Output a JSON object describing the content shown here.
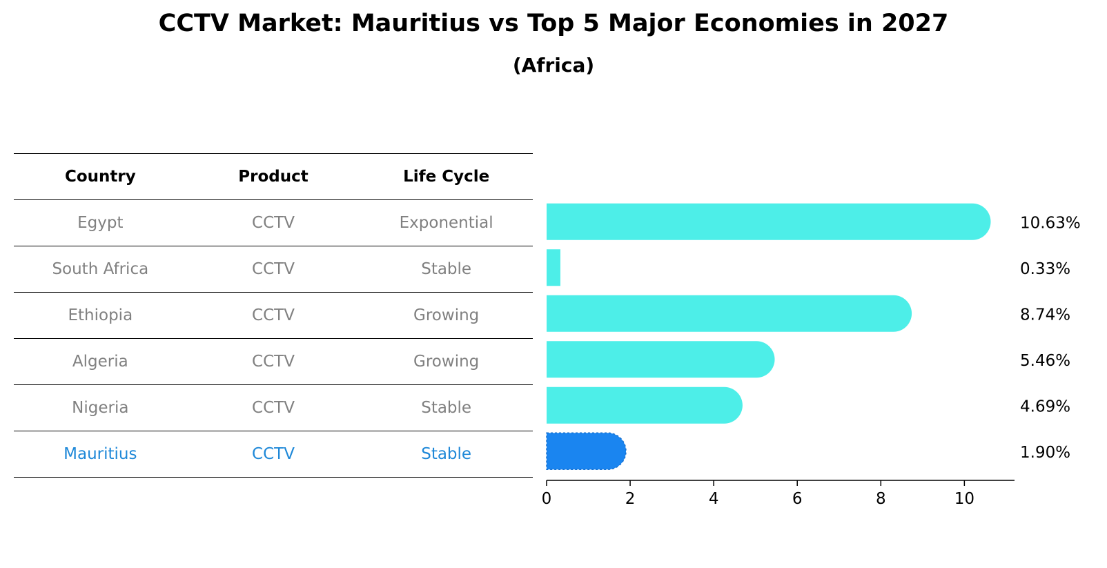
{
  "title": "CCTV Market: Mauritius vs Top 5 Major Economies in 2027",
  "subtitle": "(Africa)",
  "table": {
    "headers": [
      "Country",
      "Product",
      "Life Cycle"
    ],
    "rows": [
      {
        "country": "Egypt",
        "product": "CCTV",
        "life_cycle": "Exponential",
        "highlight": false
      },
      {
        "country": "South Africa",
        "product": "CCTV",
        "life_cycle": "Stable",
        "highlight": false
      },
      {
        "country": "Ethiopia",
        "product": "CCTV",
        "life_cycle": "Growing",
        "highlight": false
      },
      {
        "country": "Algeria",
        "product": "CCTV",
        "life_cycle": "Growing",
        "highlight": false
      },
      {
        "country": "Nigeria",
        "product": "CCTV",
        "life_cycle": "Stable",
        "highlight": false
      },
      {
        "country": "Mauritius",
        "product": "CCTV",
        "life_cycle": "Stable",
        "highlight": true
      }
    ]
  },
  "colors": {
    "bar": "#4deee8",
    "highlight_bar": "#1a85f0",
    "muted_text": "#808080",
    "highlight_text": "#1e88d8"
  },
  "chart_data": {
    "type": "bar",
    "orientation": "horizontal",
    "categories": [
      "Egypt",
      "South Africa",
      "Ethiopia",
      "Algeria",
      "Nigeria",
      "Mauritius"
    ],
    "values": [
      10.63,
      0.33,
      8.74,
      5.46,
      4.69,
      1.9
    ],
    "value_labels": [
      "10.63%",
      "0.33%",
      "8.74%",
      "5.46%",
      "4.69%",
      "1.90%"
    ],
    "highlight_index": 5,
    "xlim": [
      0,
      11.2
    ],
    "xticks": [
      0,
      2,
      4,
      6,
      8,
      10
    ],
    "xlabel": "",
    "ylabel": "",
    "grid": false
  }
}
